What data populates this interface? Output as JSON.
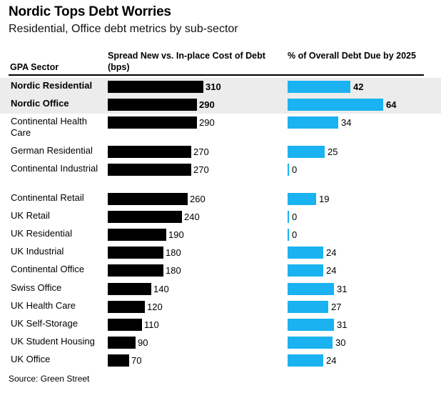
{
  "title": "Nordic Tops Debt Worries",
  "subtitle": "Residential, Office debt metrics by sub-sector",
  "source": "Source: Green Street",
  "colors": {
    "spread_bar": "#000000",
    "due_bar": "#1ab2f0",
    "highlight_row": "#ececec"
  },
  "chart_data": {
    "type": "table",
    "columns": [
      "GPA Sector",
      "Spread New vs. In-place Cost of Debt (bps)",
      "% of Overall Debt Due by 2025"
    ],
    "rows": [
      {
        "sector": "Nordic Residential",
        "spread": 310,
        "due": 42,
        "highlight": true
      },
      {
        "sector": "Nordic Office",
        "spread": 290,
        "due": 64,
        "highlight": true
      },
      {
        "sector": "Continental Health Care",
        "spread": 290,
        "due": 34,
        "highlight": false
      },
      {
        "sector": "German Residential",
        "spread": 270,
        "due": 25,
        "highlight": false
      },
      {
        "sector": "Continental Industrial",
        "spread": 270,
        "due": 0,
        "highlight": false
      },
      {
        "sector": "Continental Retail",
        "spread": 260,
        "due": 19,
        "highlight": false
      },
      {
        "sector": "UK Retail",
        "spread": 240,
        "due": 0,
        "highlight": false
      },
      {
        "sector": "UK Residential",
        "spread": 190,
        "due": 0,
        "highlight": false
      },
      {
        "sector": "UK Industrial",
        "spread": 180,
        "due": 24,
        "highlight": false
      },
      {
        "sector": "Continental Office",
        "spread": 180,
        "due": 24,
        "highlight": false
      },
      {
        "sector": "Swiss Office",
        "spread": 140,
        "due": 31,
        "highlight": false
      },
      {
        "sector": "UK Health Care",
        "spread": 120,
        "due": 27,
        "highlight": false
      },
      {
        "sector": "UK Self-Storage",
        "spread": 110,
        "due": 31,
        "highlight": false
      },
      {
        "sector": "UK Student Housing",
        "spread": 90,
        "due": 30,
        "highlight": false
      },
      {
        "sector": "UK Office",
        "spread": 70,
        "due": 24,
        "highlight": false
      }
    ]
  }
}
